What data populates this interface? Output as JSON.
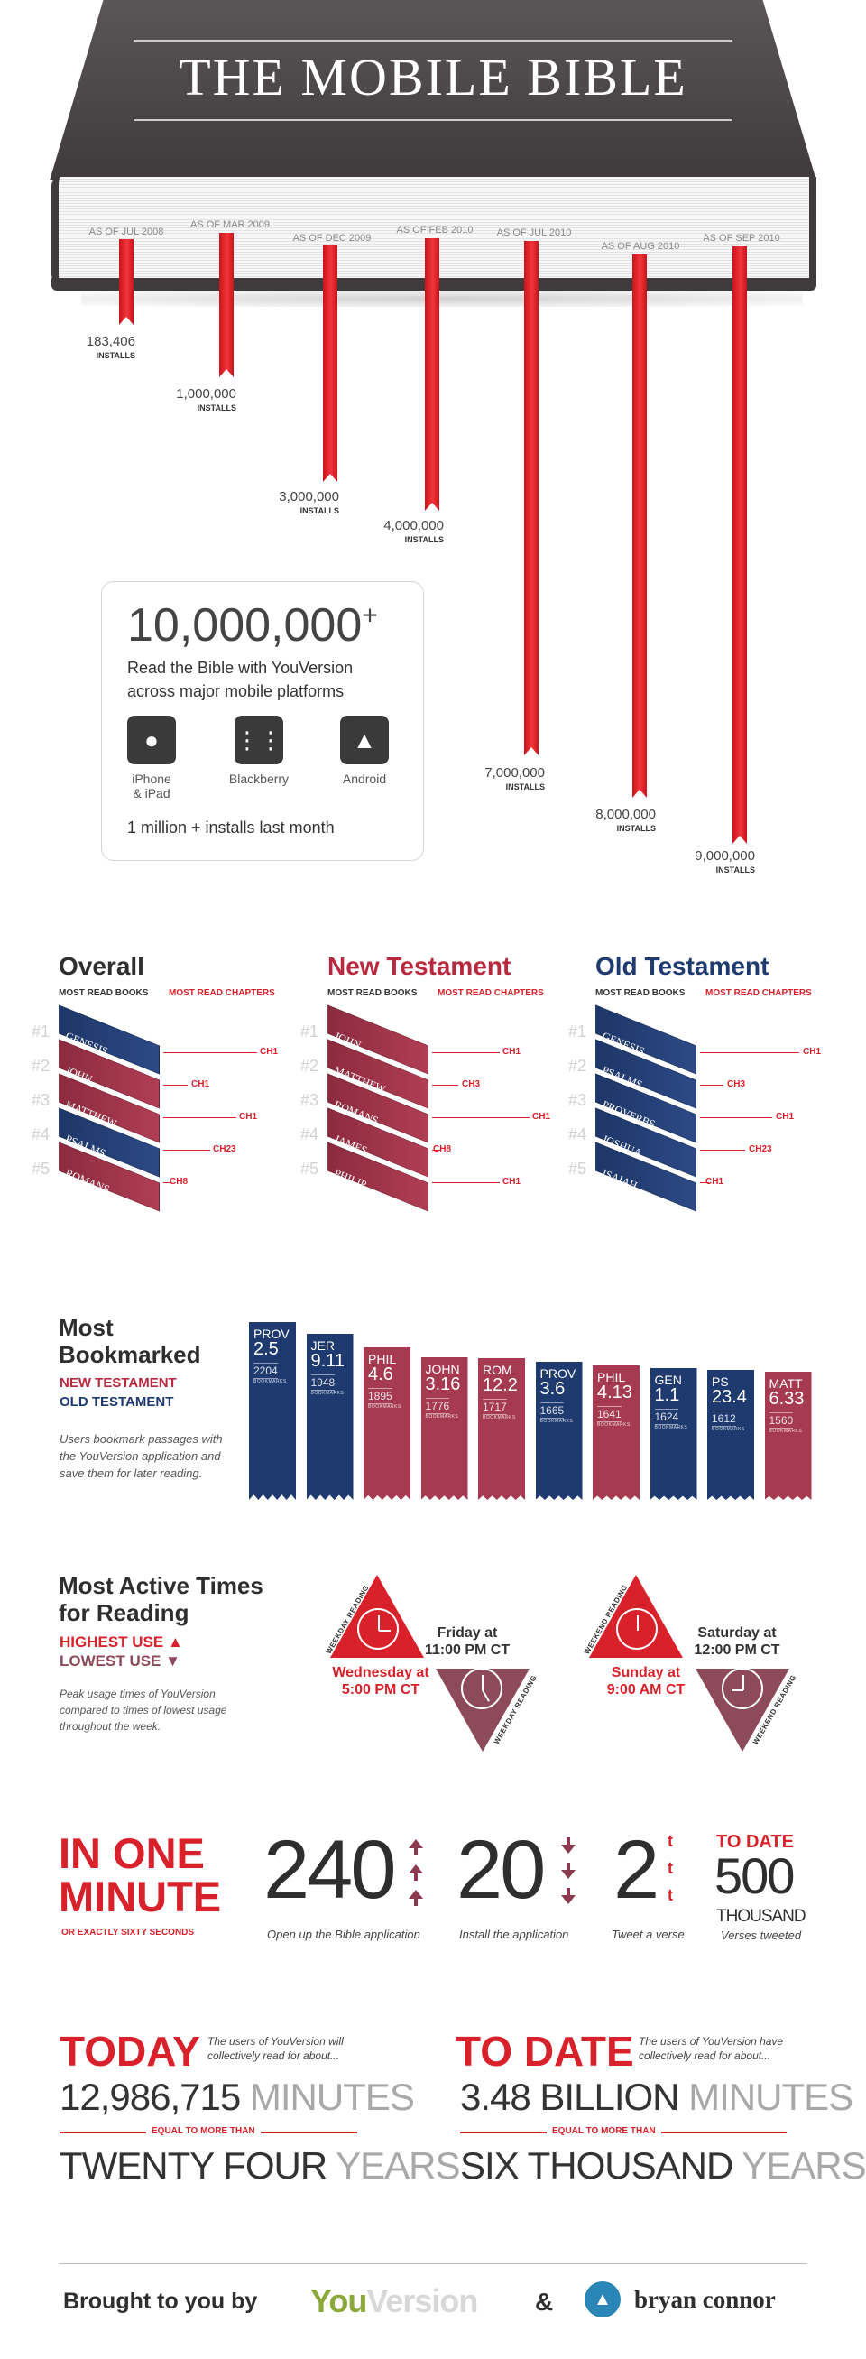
{
  "header": {
    "title": "THE MOBILE BIBLE"
  },
  "milestones": [
    {
      "date": "AS OF JUL 2008",
      "installs": "183,406",
      "unit": "INSTALLS"
    },
    {
      "date": "AS OF MAR 2009",
      "installs": "1,000,000",
      "unit": "INSTALLS"
    },
    {
      "date": "AS OF DEC 2009",
      "installs": "3,000,000",
      "unit": "INSTALLS"
    },
    {
      "date": "AS OF FEB 2010",
      "installs": "4,000,000",
      "unit": "INSTALLS"
    },
    {
      "date": "AS OF JUL 2010",
      "installs": "7,000,000",
      "unit": "INSTALLS"
    },
    {
      "date": "AS OF AUG 2010",
      "installs": "8,000,000",
      "unit": "INSTALLS"
    },
    {
      "date": "AS OF SEP 2010",
      "installs": "9,000,000",
      "unit": "INSTALLS"
    }
  ],
  "infobox": {
    "count": "10,000,000",
    "plus": "+",
    "line1": "Read the Bible with YouVersion",
    "line2": "across major mobile platforms",
    "platforms": [
      {
        "icon": "apple-icon",
        "label1": "iPhone",
        "label2": "& iPad"
      },
      {
        "icon": "blackberry-icon",
        "label1": "Blackberry",
        "label2": ""
      },
      {
        "icon": "android-icon",
        "label1": "Android",
        "label2": ""
      }
    ],
    "last_month": "1 million + installs last month"
  },
  "most_read": {
    "sub_books": "MOST READ BOOKS",
    "sub_chapters": "MOST READ CHAPTERS",
    "ranks": [
      "#1",
      "#2",
      "#3",
      "#4",
      "#5"
    ],
    "columns": [
      {
        "title": "Overall",
        "color": "#2e2e2e",
        "books": [
          {
            "name": "GENESIS",
            "c": "blue"
          },
          {
            "name": "JOHN",
            "c": "red"
          },
          {
            "name": "MATTHEW",
            "c": "red"
          },
          {
            "name": "PSALMS",
            "c": "blue"
          },
          {
            "name": "ROMANS",
            "c": "red"
          }
        ],
        "chapters": [
          "CH1",
          "CH1",
          "CH1",
          "CH23",
          "CH8"
        ]
      },
      {
        "title": "New Testament",
        "color": "#b8283e",
        "books": [
          {
            "name": "JOHN",
            "c": "red"
          },
          {
            "name": "MATTHEW",
            "c": "red"
          },
          {
            "name": "ROMANS",
            "c": "red"
          },
          {
            "name": "JAMES",
            "c": "red"
          },
          {
            "name": "PHILIP",
            "c": "red"
          }
        ],
        "chapters": [
          "CH1",
          "CH3",
          "CH1",
          "CH8",
          "CH1"
        ]
      },
      {
        "title": "Old Testament",
        "color": "#1f3a6f",
        "books": [
          {
            "name": "GENESIS",
            "c": "blue"
          },
          {
            "name": "PSALMS",
            "c": "blue"
          },
          {
            "name": "PROVERBS",
            "c": "blue"
          },
          {
            "name": "JOSHUA",
            "c": "blue"
          },
          {
            "name": "ISAIAH",
            "c": "blue"
          }
        ],
        "chapters": [
          "CH1",
          "CH3",
          "CH1",
          "CH23",
          "CH1"
        ]
      }
    ]
  },
  "bookmarked": {
    "title1": "Most",
    "title2": "Bookmarked",
    "nt": "NEW TESTAMENT",
    "ot": "OLD TESTAMENT",
    "note": "Users bookmark passages with the YouVersion application and save them for later reading.",
    "word": "BOOKMARKS",
    "items": [
      {
        "book": "PROV",
        "ref": "2.5",
        "count": "2204",
        "c": "blue"
      },
      {
        "book": "JER",
        "ref": "9.11",
        "count": "1948",
        "c": "blue"
      },
      {
        "book": "PHIL",
        "ref": "4.6",
        "count": "1895",
        "c": "red"
      },
      {
        "book": "JOHN",
        "ref": "3.16",
        "count": "1776",
        "c": "red"
      },
      {
        "book": "ROM",
        "ref": "12.2",
        "count": "1717",
        "c": "red"
      },
      {
        "book": "PROV",
        "ref": "3.6",
        "count": "1665",
        "c": "blue"
      },
      {
        "book": "PHIL",
        "ref": "4.13",
        "count": "1641",
        "c": "red"
      },
      {
        "book": "GEN",
        "ref": "1.1",
        "count": "1624",
        "c": "blue"
      },
      {
        "book": "PS",
        "ref": "23.4",
        "count": "1612",
        "c": "blue"
      },
      {
        "book": "MATT",
        "ref": "6.33",
        "count": "1560",
        "c": "red"
      }
    ]
  },
  "active": {
    "title1": "Most Active Times",
    "title2": "for Reading",
    "highest": "HIGHEST USE",
    "lowest": "LOWEST USE",
    "note": "Peak usage times of YouVersion compared to times of lowest usage throughout the week.",
    "weekday": {
      "hi1": "Friday at",
      "hi2": "11:00 PM CT",
      "lo1": "Wednesday at",
      "lo2": "5:00 PM CT",
      "tag": "WEEKDAY READING"
    },
    "weekend": {
      "hi1": "Saturday at",
      "hi2": "12:00 PM CT",
      "lo1": "Sunday at",
      "lo2": "9:00 AM CT",
      "tag": "WEEKEND READING"
    }
  },
  "minute": {
    "title1": "IN ONE",
    "title2": "MINUTE",
    "exact": "OR EXACTLY SIXTY SECONDS",
    "stats": [
      {
        "value": "240",
        "caption": "Open up the Bible application"
      },
      {
        "value": "20",
        "caption": "Install the application"
      },
      {
        "value": "2",
        "caption": "Tweet a verse"
      }
    ],
    "to_date": "TO DATE",
    "to_date_value": "500",
    "to_date_unit": "THOUSAND",
    "to_date_caption": "Verses tweeted"
  },
  "totals": [
    {
      "label": "TODAY",
      "note1": "The users of YouVersion will",
      "note2": "collectively read for about...",
      "number": "12,986,715",
      "unit": "MINUTES",
      "eq": "EQUAL TO MORE THAN",
      "big": "TWENTY FOUR",
      "big_unit": "YEARS"
    },
    {
      "label": "TO DATE",
      "note1": "The users of YouVersion have",
      "note2": "collectively read for about...",
      "number": "3.48 BILLION",
      "unit": "MINUTES",
      "eq": "EQUAL TO MORE THAN",
      "big": "SIX THOUSAND",
      "big_unit": "YEARS"
    }
  ],
  "footer": {
    "brought": "Brought to you by",
    "you": "You",
    "version": "Version",
    "amp": "&",
    "author": "bryan connor"
  },
  "colors": {
    "red": "#d8212a",
    "maroon": "#a53a50",
    "navy": "#1f3a6f",
    "youversion_green": "#8ba83a"
  }
}
